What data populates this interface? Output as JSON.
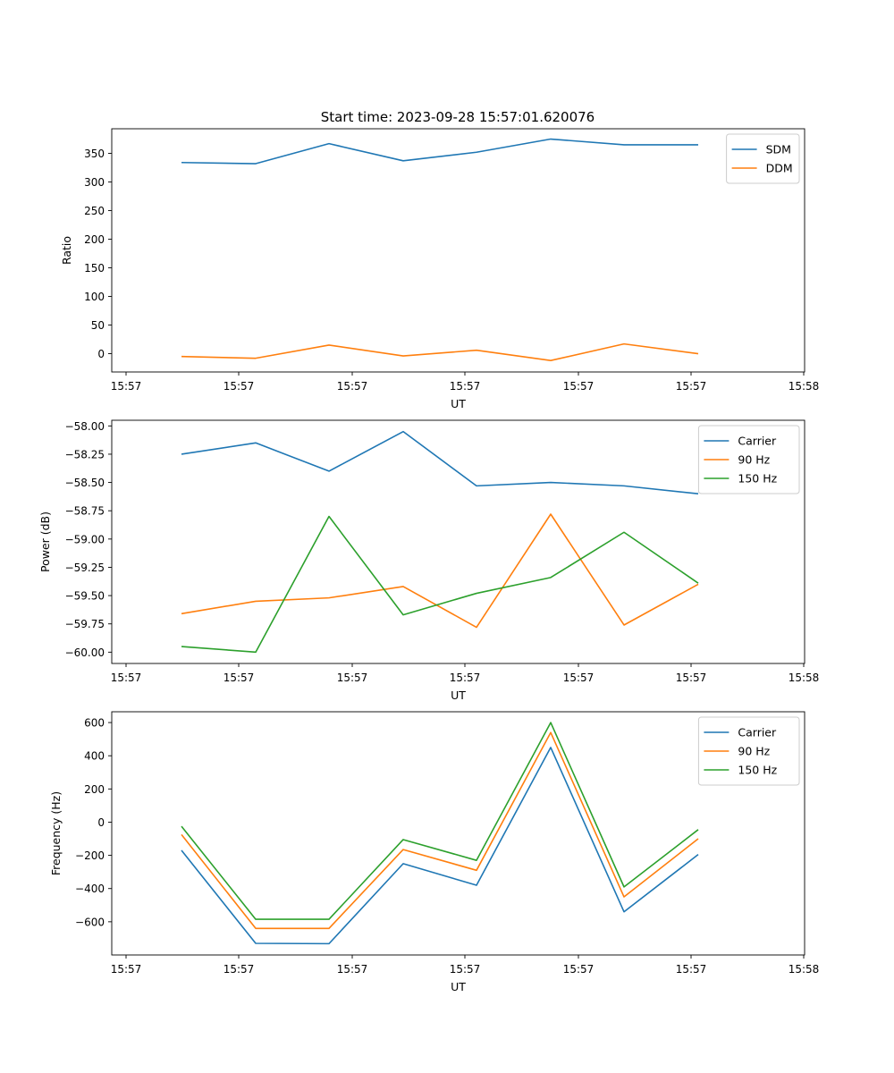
{
  "figure_title": "Start time: 2023-09-28 15:57:01.620076",
  "colors": {
    "blue": "#1f77b4",
    "orange": "#ff7f0e",
    "green": "#2ca02c"
  },
  "chart_data": [
    {
      "type": "line",
      "title": "Start time: 2023-09-28 15:57:01.620076",
      "xlabel": "UT",
      "ylabel": "Ratio",
      "x_tick_labels": [
        "15:57",
        "15:57",
        "15:57",
        "15:57",
        "15:57",
        "15:57",
        "15:58"
      ],
      "y_ticks": [
        0,
        50,
        100,
        150,
        200,
        250,
        300,
        350
      ],
      "y_tick_labels": [
        "0",
        "50",
        "100",
        "150",
        "200",
        "250",
        "300",
        "350"
      ],
      "ylim": [
        -32,
        393
      ],
      "legend_location": "upper right",
      "series": [
        {
          "name": "SDM",
          "color": "#1f77b4",
          "values": [
            334,
            332,
            367,
            337,
            352,
            375,
            365,
            365
          ]
        },
        {
          "name": "DDM",
          "color": "#ff7f0e",
          "values": [
            -5,
            -8,
            15,
            -4,
            6,
            -12,
            17,
            0
          ]
        }
      ]
    },
    {
      "type": "line",
      "title": "",
      "xlabel": "UT",
      "ylabel": "Power (dB)",
      "x_tick_labels": [
        "15:57",
        "15:57",
        "15:57",
        "15:57",
        "15:57",
        "15:57",
        "15:58"
      ],
      "y_ticks": [
        -60.0,
        -59.75,
        -59.5,
        -59.25,
        -59.0,
        -58.75,
        -58.5,
        -58.25,
        -58.0
      ],
      "y_tick_labels": [
        "−60.00",
        "−59.75",
        "−59.50",
        "−59.25",
        "−59.00",
        "−58.75",
        "−58.50",
        "−58.25",
        "−58.00"
      ],
      "ylim": [
        -60.1,
        -57.95
      ],
      "legend_location": "upper right",
      "series": [
        {
          "name": "Carrier",
          "color": "#1f77b4",
          "values": [
            -58.25,
            -58.15,
            -58.4,
            -58.05,
            -58.53,
            -58.5,
            -58.53,
            -58.6
          ]
        },
        {
          "name": "90 Hz",
          "color": "#ff7f0e",
          "values": [
            -59.66,
            -59.55,
            -59.52,
            -59.42,
            -59.78,
            -58.78,
            -59.76,
            -59.4
          ]
        },
        {
          "name": "150 Hz",
          "color": "#2ca02c",
          "values": [
            -59.95,
            -60.0,
            -58.8,
            -59.67,
            -59.48,
            -59.34,
            -58.94,
            -59.39
          ]
        }
      ]
    },
    {
      "type": "line",
      "title": "",
      "xlabel": "UT",
      "ylabel": "Frequency (Hz)",
      "x_tick_labels": [
        "15:57",
        "15:57",
        "15:57",
        "15:57",
        "15:57",
        "15:57",
        "15:58"
      ],
      "y_ticks": [
        -600,
        -400,
        -200,
        0,
        200,
        400,
        600
      ],
      "y_tick_labels": [
        "−600",
        "−400",
        "−200",
        "0",
        "200",
        "400",
        "600"
      ],
      "ylim": [
        -800,
        665
      ],
      "legend_location": "upper right",
      "series": [
        {
          "name": "Carrier",
          "color": "#1f77b4",
          "values": [
            -170,
            -730,
            -732,
            -250,
            -380,
            450,
            -540,
            -195
          ]
        },
        {
          "name": "90 Hz",
          "color": "#ff7f0e",
          "values": [
            -75,
            -640,
            -640,
            -165,
            -290,
            540,
            -450,
            -100
          ]
        },
        {
          "name": "150 Hz",
          "color": "#2ca02c",
          "values": [
            -25,
            -585,
            -585,
            -105,
            -230,
            600,
            -390,
            -45
          ]
        }
      ]
    }
  ]
}
